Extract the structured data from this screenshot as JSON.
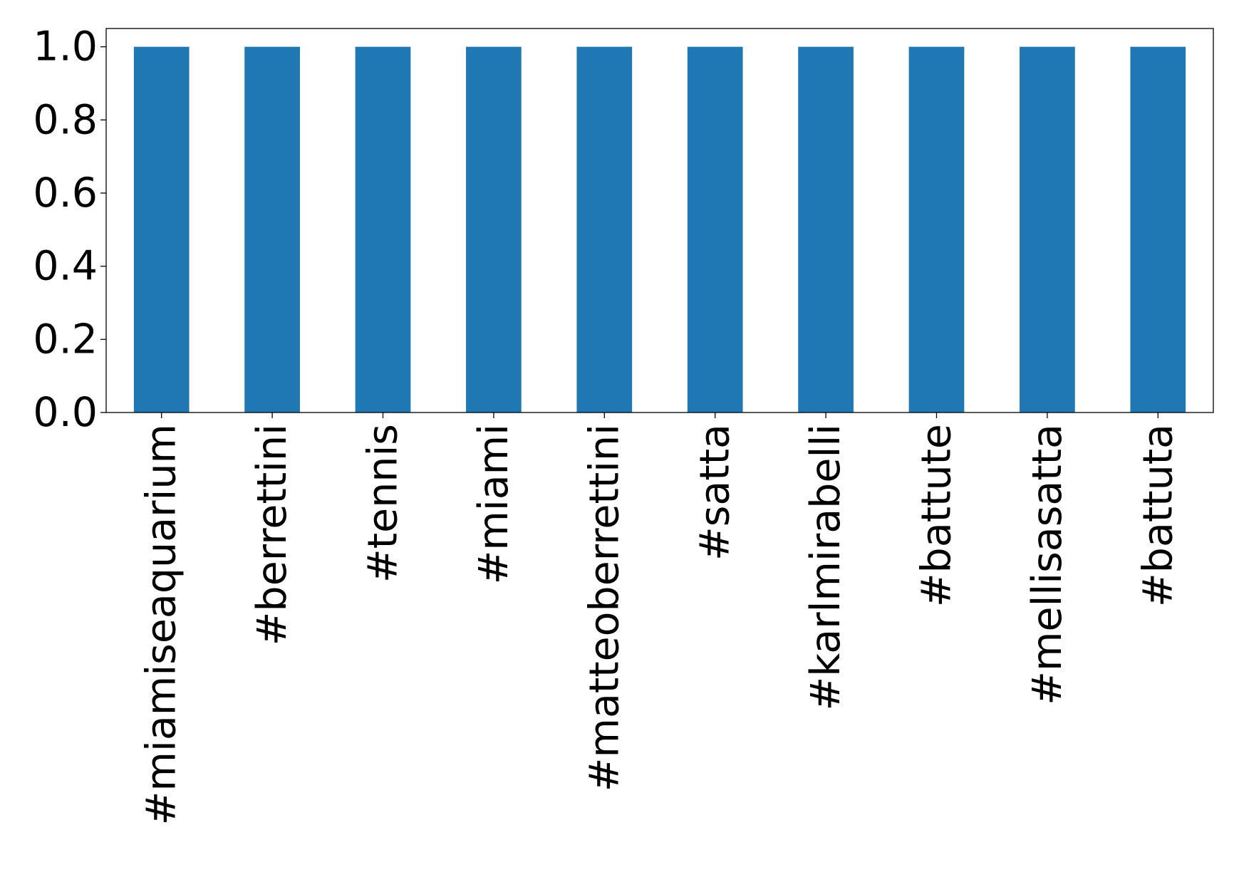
{
  "chart_data": {
    "type": "bar",
    "title": "",
    "xlabel": "",
    "ylabel": "",
    "categories": [
      "#miamiseaquarium",
      "#berrettini",
      "#tennis",
      "#miami",
      "#matteoberrettini",
      "#satta",
      "#karlmirabelli",
      "#battute",
      "#mellisasatta",
      "#battuta"
    ],
    "values": [
      1.0,
      1.0,
      1.0,
      1.0,
      1.0,
      1.0,
      1.0,
      1.0,
      1.0,
      1.0
    ],
    "ylim": [
      0,
      1.05
    ],
    "yticks": [
      "0.0",
      "0.2",
      "0.4",
      "0.6",
      "0.8",
      "1.0"
    ],
    "bar_color": "#1f77b4",
    "grid": false,
    "legend": "none"
  }
}
